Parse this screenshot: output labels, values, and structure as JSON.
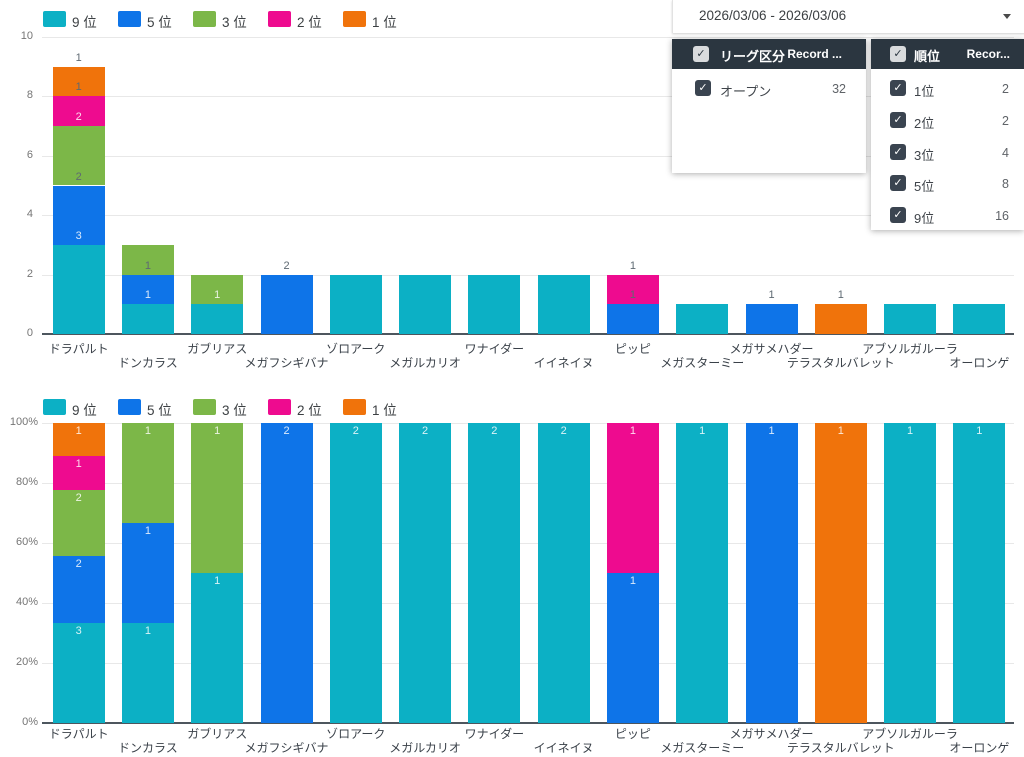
{
  "ui": {
    "date_range": {
      "value": "2026/03/06 - 2026/03/06"
    },
    "filter_panels": [
      {
        "id": "league",
        "title": "リーグ区分",
        "record_column": "Record ...",
        "select_all_checked": true,
        "rows": [
          {
            "label": "オープン",
            "count": "32",
            "checked": true
          }
        ]
      },
      {
        "id": "rank",
        "title": "順位",
        "record_column": "Recor...",
        "select_all_checked": true,
        "rows": [
          {
            "label": "1位",
            "count": "2",
            "checked": true
          },
          {
            "label": "2位",
            "count": "2",
            "checked": true
          },
          {
            "label": "3位",
            "count": "4",
            "checked": true
          },
          {
            "label": "5位",
            "count": "8",
            "checked": true
          },
          {
            "label": "9位",
            "count": "16",
            "checked": true
          }
        ]
      }
    ],
    "checkmark_glyph": "✓"
  },
  "colors": {
    "teal": "#0cb0c5",
    "blue": "#0e74e8",
    "green": "#7cb748",
    "pink": "#ee0b8f",
    "orange": "#f0730b",
    "panel_header": "#2b3640",
    "checkbox_dark": "#3a4450",
    "bar_label_dark": "#5e6972",
    "bar_label_light": "rgba(255,255,255,0.85)"
  },
  "chart_data": [
    {
      "type": "bar",
      "stacked": true,
      "title": "",
      "xlabel": "",
      "ylabel": "",
      "ylim": [
        0,
        10
      ],
      "yticks": [
        0,
        2,
        4,
        6,
        8,
        10
      ],
      "grid": true,
      "legend_position": "top",
      "categories": [
        "ドラパルト",
        "ドンカラス",
        "ガブリアス",
        "メガフシギバナ",
        "ゾロアーク",
        "メガルカリオ",
        "ワナイダー",
        "イイネイヌ",
        "ピッピ",
        "メガスターミー",
        "メガサメハダー",
        "テラスタルバレット",
        "アブソルガルーラ",
        "オーロンゲ"
      ],
      "series": [
        {
          "name": "9 位",
          "color": "#0cb0c5",
          "label_color": "light",
          "values": [
            3,
            1,
            1,
            0,
            2,
            2,
            2,
            2,
            0,
            1,
            0,
            0,
            1,
            1
          ]
        },
        {
          "name": "5 位",
          "color": "#0e74e8",
          "label_color": "dark",
          "values": [
            2,
            1,
            0,
            2,
            0,
            0,
            0,
            0,
            1,
            0,
            1,
            0,
            0,
            0
          ]
        },
        {
          "name": "3 位",
          "color": "#7cb748",
          "label_color": "light",
          "values": [
            2,
            1,
            1,
            0,
            0,
            0,
            0,
            0,
            0,
            0,
            0,
            0,
            0,
            0
          ]
        },
        {
          "name": "2 位",
          "color": "#ee0b8f",
          "label_color": "dark",
          "values": [
            1,
            0,
            0,
            0,
            0,
            0,
            0,
            0,
            1,
            0,
            0,
            0,
            0,
            0
          ]
        },
        {
          "name": "1 位",
          "color": "#f0730b",
          "label_color": "dark",
          "values": [
            1,
            0,
            0,
            0,
            0,
            0,
            0,
            0,
            0,
            0,
            0,
            1,
            0,
            0
          ]
        }
      ]
    },
    {
      "type": "bar",
      "stacked": "percent",
      "title": "",
      "xlabel": "",
      "ylabel": "",
      "ylim": [
        "0%",
        "100%"
      ],
      "yticks": [
        "0%",
        "20%",
        "40%",
        "60%",
        "80%",
        "100%"
      ],
      "grid": true,
      "legend_position": "top",
      "categories": [
        "ドラパルト",
        "ドンカラス",
        "ガブリアス",
        "メガフシギバナ",
        "ゾロアーク",
        "メガルカリオ",
        "ワナイダー",
        "イイネイヌ",
        "ピッピ",
        "メガスターミー",
        "メガサメハダー",
        "テラスタルバレット",
        "アブソルガルーラ",
        "オーロンゲ"
      ],
      "series": [
        {
          "name": "9 位",
          "color": "#0cb0c5",
          "label_color": "light",
          "values": [
            3,
            1,
            1,
            0,
            2,
            2,
            2,
            2,
            0,
            1,
            0,
            0,
            1,
            1
          ]
        },
        {
          "name": "5 位",
          "color": "#0e74e8",
          "label_color": "light",
          "values": [
            2,
            1,
            0,
            2,
            0,
            0,
            0,
            0,
            1,
            0,
            1,
            0,
            0,
            0
          ]
        },
        {
          "name": "3 位",
          "color": "#7cb748",
          "label_color": "light",
          "values": [
            2,
            1,
            1,
            0,
            0,
            0,
            0,
            0,
            0,
            0,
            0,
            0,
            0,
            0
          ]
        },
        {
          "name": "2 位",
          "color": "#ee0b8f",
          "label_color": "light",
          "values": [
            1,
            0,
            0,
            0,
            0,
            0,
            0,
            0,
            1,
            0,
            0,
            0,
            0,
            0
          ]
        },
        {
          "name": "1 位",
          "color": "#f0730b",
          "label_color": "light",
          "values": [
            1,
            0,
            0,
            0,
            0,
            0,
            0,
            0,
            0,
            0,
            0,
            1,
            0,
            0
          ]
        }
      ]
    }
  ]
}
